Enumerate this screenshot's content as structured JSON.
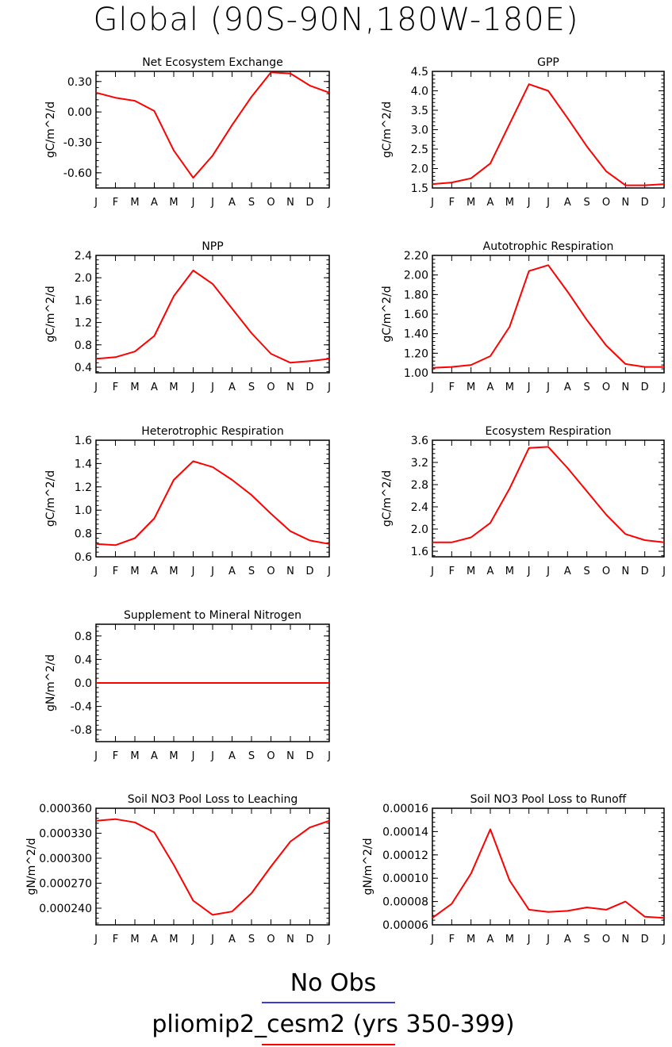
{
  "page": {
    "title": "Global (90S-90N,180W-180E)",
    "legend": [
      {
        "label": "No Obs",
        "color": "#3b3bd6"
      },
      {
        "label": "pliomip2_cesm2 (yrs 350-399)",
        "color": "#ff0000"
      }
    ]
  },
  "chart_data": [
    {
      "type": "line",
      "title": "Net Ecosystem Exchange",
      "ylabel": "gC/m^2/d",
      "x": [
        "J",
        "F",
        "M",
        "A",
        "M",
        "J",
        "J",
        "A",
        "S",
        "O",
        "N",
        "D",
        "J"
      ],
      "ylim": [
        -0.75,
        0.4
      ],
      "yticks": [
        0.3,
        0.0,
        -0.3,
        -0.6
      ],
      "ytick_labels": [
        "0.30",
        "0.00",
        "-0.30",
        "-0.60"
      ],
      "series": [
        {
          "color": "#ff0000",
          "values": [
            0.19,
            0.14,
            0.11,
            0.01,
            -0.38,
            -0.65,
            -0.43,
            -0.13,
            0.15,
            0.39,
            0.38,
            0.26,
            0.19
          ]
        }
      ]
    },
    {
      "type": "line",
      "title": "GPP",
      "ylabel": "gC/m^2/d",
      "x": [
        "J",
        "F",
        "M",
        "A",
        "M",
        "J",
        "J",
        "A",
        "S",
        "O",
        "N",
        "D",
        "J"
      ],
      "ylim": [
        1.5,
        4.5
      ],
      "yticks": [
        1.5,
        2.0,
        2.5,
        3.0,
        3.5,
        4.0,
        4.5
      ],
      "ytick_labels": [
        "1.5",
        "2.0",
        "2.5",
        "3.0",
        "3.5",
        "4.0",
        "4.5"
      ],
      "series": [
        {
          "color": "#ff0000",
          "values": [
            1.6,
            1.64,
            1.75,
            2.13,
            3.15,
            4.17,
            4.0,
            3.3,
            2.57,
            1.93,
            1.57,
            1.57,
            1.6
          ]
        }
      ]
    },
    {
      "type": "line",
      "title": "NPP",
      "ylabel": "gC/m^2/d",
      "x": [
        "J",
        "F",
        "M",
        "A",
        "M",
        "J",
        "J",
        "A",
        "S",
        "O",
        "N",
        "D",
        "J"
      ],
      "ylim": [
        0.3,
        2.4
      ],
      "yticks": [
        0.4,
        0.8,
        1.2,
        1.6,
        2.0,
        2.4
      ],
      "ytick_labels": [
        "0.4",
        "0.8",
        "1.2",
        "1.6",
        "2.0",
        "2.4"
      ],
      "series": [
        {
          "color": "#ff0000",
          "values": [
            0.55,
            0.58,
            0.68,
            0.96,
            1.67,
            2.13,
            1.89,
            1.45,
            1.01,
            0.64,
            0.48,
            0.51,
            0.55
          ]
        }
      ]
    },
    {
      "type": "line",
      "title": "Autotrophic Respiration",
      "ylabel": "gC/m^2/d",
      "x": [
        "J",
        "F",
        "M",
        "A",
        "M",
        "J",
        "J",
        "A",
        "S",
        "O",
        "N",
        "D",
        "J"
      ],
      "ylim": [
        1.0,
        2.2
      ],
      "yticks": [
        1.0,
        1.2,
        1.4,
        1.6,
        1.8,
        2.0,
        2.2
      ],
      "ytick_labels": [
        "1.00",
        "1.20",
        "1.40",
        "1.60",
        "1.80",
        "2.00",
        "2.20"
      ],
      "series": [
        {
          "color": "#ff0000",
          "values": [
            1.05,
            1.06,
            1.08,
            1.17,
            1.47,
            2.04,
            2.1,
            1.83,
            1.54,
            1.28,
            1.09,
            1.06,
            1.06
          ]
        }
      ]
    },
    {
      "type": "line",
      "title": "Heterotrophic Respiration",
      "ylabel": "gC/m^2/d",
      "x": [
        "J",
        "F",
        "M",
        "A",
        "M",
        "J",
        "J",
        "A",
        "S",
        "O",
        "N",
        "D",
        "J"
      ],
      "ylim": [
        0.6,
        1.6
      ],
      "yticks": [
        0.6,
        0.8,
        1.0,
        1.2,
        1.4,
        1.6
      ],
      "ytick_labels": [
        "0.6",
        "0.8",
        "1.0",
        "1.2",
        "1.4",
        "1.6"
      ],
      "series": [
        {
          "color": "#ff0000",
          "values": [
            0.71,
            0.7,
            0.76,
            0.93,
            1.26,
            1.42,
            1.37,
            1.26,
            1.13,
            0.97,
            0.82,
            0.74,
            0.71
          ]
        }
      ]
    },
    {
      "type": "line",
      "title": "Ecosystem Respiration",
      "ylabel": "gC/m^2/d",
      "x": [
        "J",
        "F",
        "M",
        "A",
        "M",
        "J",
        "J",
        "A",
        "S",
        "O",
        "N",
        "D",
        "J"
      ],
      "ylim": [
        1.5,
        3.6
      ],
      "yticks": [
        1.6,
        2.0,
        2.4,
        2.8,
        3.2,
        3.6
      ],
      "ytick_labels": [
        "1.6",
        "2.0",
        "2.4",
        "2.8",
        "3.2",
        "3.6"
      ],
      "series": [
        {
          "color": "#ff0000",
          "values": [
            1.76,
            1.76,
            1.85,
            2.11,
            2.73,
            3.46,
            3.48,
            3.1,
            2.68,
            2.26,
            1.91,
            1.8,
            1.76
          ]
        }
      ]
    },
    {
      "type": "line",
      "title": "Supplement to Mineral Nitrogen",
      "ylabel": "gN/m^2/d",
      "x": [
        "J",
        "F",
        "M",
        "A",
        "M",
        "J",
        "J",
        "A",
        "S",
        "O",
        "N",
        "D",
        "J"
      ],
      "ylim": [
        -1.0,
        1.0
      ],
      "yticks": [
        -0.8,
        -0.4,
        0.0,
        0.4,
        0.8
      ],
      "ytick_labels": [
        "-0.8",
        "-0.4",
        "0.0",
        "0.4",
        "0.8"
      ],
      "series": [
        {
          "color": "#ff0000",
          "values": [
            0,
            0,
            0,
            0,
            0,
            0,
            0,
            0,
            0,
            0,
            0,
            0,
            0
          ]
        }
      ]
    },
    {
      "type": "line",
      "title": "Soil NO3 Pool Loss to Leaching",
      "ylabel": "gN/m^2/d",
      "x": [
        "J",
        "F",
        "M",
        "A",
        "M",
        "J",
        "J",
        "A",
        "S",
        "O",
        "N",
        "D",
        "J"
      ],
      "ylim": [
        0.00022,
        0.00036
      ],
      "yticks": [
        0.00024,
        0.00027,
        0.0003,
        0.00033,
        0.00036
      ],
      "ytick_labels": [
        "0.000240",
        "0.000270",
        "0.000300",
        "0.000330",
        "0.000360"
      ],
      "series": [
        {
          "color": "#ff0000",
          "values": [
            0.000345,
            0.000347,
            0.000343,
            0.000331,
            0.000292,
            0.000249,
            0.000232,
            0.000236,
            0.000258,
            0.00029,
            0.00032,
            0.000337,
            0.000345
          ]
        }
      ]
    },
    {
      "type": "line",
      "title": "Soil NO3 Pool Loss to Runoff",
      "ylabel": "gN/m^2/d",
      "x": [
        "J",
        "F",
        "M",
        "A",
        "M",
        "J",
        "J",
        "A",
        "S",
        "O",
        "N",
        "D",
        "J"
      ],
      "ylim": [
        6e-05,
        0.00016
      ],
      "yticks": [
        6e-05,
        8e-05,
        0.0001,
        0.00012,
        0.00014,
        0.00016
      ],
      "ytick_labels": [
        "0.00006",
        "0.00008",
        "0.00010",
        "0.00012",
        "0.00014",
        "0.00016"
      ],
      "series": [
        {
          "color": "#ff0000",
          "values": [
            6.6e-05,
            7.8e-05,
            0.000104,
            0.000142,
            9.8e-05,
            7.3e-05,
            7.1e-05,
            7.2e-05,
            7.5e-05,
            7.3e-05,
            8e-05,
            6.7e-05,
            6.6e-05
          ]
        }
      ]
    }
  ]
}
